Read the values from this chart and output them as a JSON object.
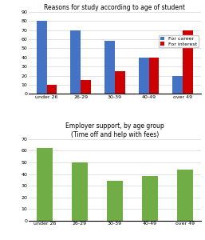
{
  "chart1": {
    "title": "Reasons for study according to age of student",
    "categories": [
      "under 26",
      "26-29",
      "30-39",
      "40-49",
      "over 49"
    ],
    "career": [
      80,
      70,
      58,
      40,
      20
    ],
    "interest": [
      10,
      15,
      25,
      40,
      70
    ],
    "career_color": "#4472C4",
    "interest_color": "#CC0000",
    "ylim": [
      0,
      90
    ],
    "yticks": [
      0,
      10,
      20,
      30,
      40,
      50,
      60,
      70,
      80,
      90
    ],
    "legend_career": "For career",
    "legend_interest": "For interest"
  },
  "chart2": {
    "title": "Employer support, by age group\n(Time off and help with fees)",
    "categories": [
      "under 26",
      "26-29",
      "30-39",
      "40-49",
      "over 49"
    ],
    "values": [
      62,
      50,
      34,
      38,
      44
    ],
    "bar_color": "#70AD47",
    "ylim": [
      0,
      70
    ],
    "yticks": [
      0,
      10,
      20,
      30,
      40,
      50,
      60,
      70
    ]
  },
  "bg_color": "#FFFFFF",
  "title_fontsize": 5.5,
  "tick_fontsize": 4.5,
  "legend_fontsize": 4.5
}
